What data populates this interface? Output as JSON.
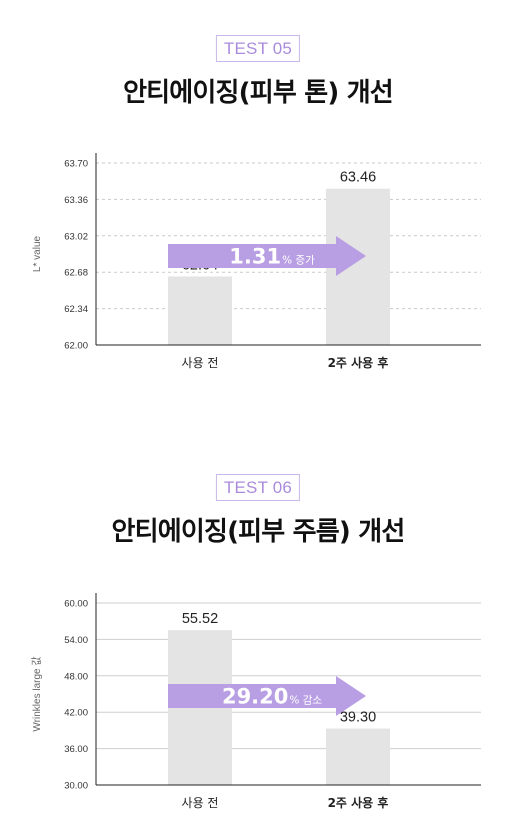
{
  "sections": [
    {
      "badge": "TEST 05",
      "title": "안티에이징(피부 톤) 개선",
      "arrow_value": "1.31",
      "arrow_suffix": "% 증가"
    },
    {
      "badge": "TEST 06",
      "title": "안티에이징(피부 주름) 개선",
      "arrow_value": "29.20",
      "arrow_suffix": "% 감소"
    }
  ],
  "chart_data": [
    {
      "type": "bar",
      "categories": [
        "사용 전",
        "2주 사용 후"
      ],
      "values": [
        62.64,
        63.46
      ],
      "value_labels": [
        "62.64",
        "63.46"
      ],
      "ylabel": "L* value",
      "ylim": [
        62.0,
        63.7
      ],
      "yticks": [
        "62.00",
        "62.34",
        "62.68",
        "63.02",
        "63.36",
        "63.70"
      ],
      "grid": "dashed horizontal",
      "bar_color": "#e4e4e4",
      "arrow_color": "#b89ee3"
    },
    {
      "type": "bar",
      "categories": [
        "사용 전",
        "2주 사용 후"
      ],
      "values": [
        55.52,
        39.3
      ],
      "value_labels": [
        "55.52",
        "39.30"
      ],
      "ylabel": "Wrinkles large 값",
      "ylim": [
        30.0,
        60.0
      ],
      "yticks": [
        "30.00",
        "36.00",
        "42.00",
        "48.00",
        "54.00",
        "60.00"
      ],
      "grid": "solid horizontal",
      "bar_color": "#e4e4e4",
      "arrow_color": "#b89ee3"
    }
  ]
}
